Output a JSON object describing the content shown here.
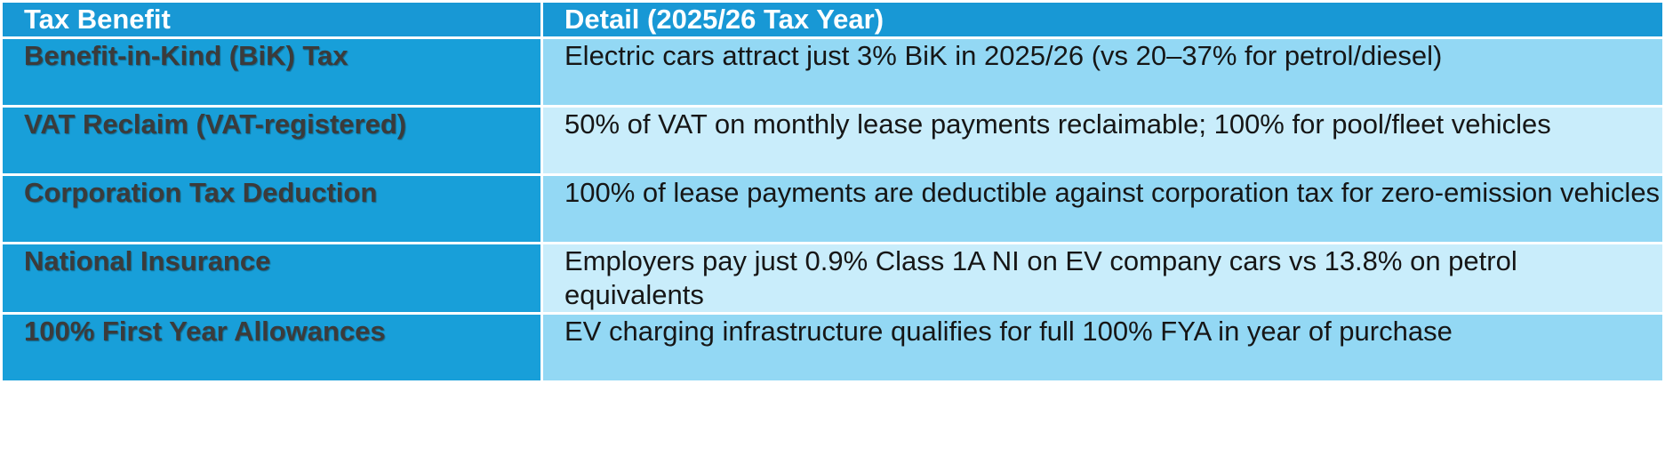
{
  "table": {
    "columns": [
      "Tax Benefit",
      "Detail (2025/26 Tax Year)"
    ],
    "rows": [
      [
        "Benefit-in-Kind (BiK) Tax",
        "Electric cars attract just 3% BiK in 2025/26 (vs 20–37% for petrol/diesel)"
      ],
      [
        "VAT Reclaim (VAT-registered)",
        "50% of VAT on monthly lease payments reclaimable; 100% for pool/fleet vehicles"
      ],
      [
        "Corporation Tax Deduction",
        "100% of lease payments are deductible against corporation tax for zero-emission vehicles"
      ],
      [
        "National Insurance",
        "Employers pay just 0.9% Class 1A NI on EV company cars vs 13.8% on petrol equivalents"
      ],
      [
        "100% First Year Allowances",
        "EV charging infrastructure qualifies for full 100% FYA in year of purchase"
      ]
    ]
  }
}
